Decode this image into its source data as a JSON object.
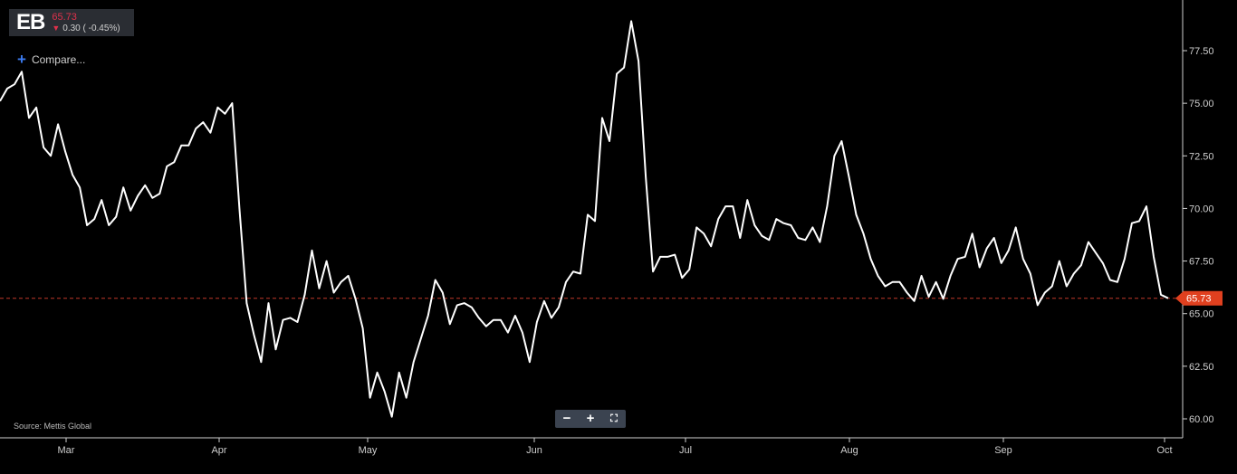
{
  "ticker": {
    "symbol": "EB",
    "price": "65.73",
    "change": "0.30 ( -0.45%)",
    "change_direction_icon": "down-arrow-icon",
    "colors": {
      "down": "#e0314b",
      "panel": "#2a2d33"
    }
  },
  "compare": {
    "label": "Compare...",
    "icon": "plus-icon"
  },
  "source": "Source: Mettis Global",
  "zoom_controls": {
    "zoom_out": "−",
    "zoom_in": "+",
    "fullscreen": "⛶"
  },
  "chart_data": {
    "type": "line",
    "title": "",
    "xlabel": "",
    "ylabel": "",
    "x_ticks": [
      "Mar",
      "Apr",
      "May",
      "Jun",
      "Jul",
      "Aug",
      "Sep",
      "Oct"
    ],
    "y_ticks": [
      "60.00",
      "62.50",
      "65.00",
      "67.50",
      "70.00",
      "72.50",
      "75.00",
      "77.50"
    ],
    "ylim": [
      59.5,
      79.8
    ],
    "line_color": "#ffffff",
    "last_value": 65.73,
    "last_value_label": "65.73",
    "last_value_color": "#e0401f",
    "grid": false,
    "values": [
      75.1,
      75.7,
      75.9,
      76.5,
      74.3,
      74.8,
      72.9,
      72.5,
      74.0,
      72.7,
      71.6,
      71.0,
      69.2,
      69.5,
      70.4,
      69.2,
      69.6,
      71.0,
      69.9,
      70.6,
      71.1,
      70.5,
      70.7,
      72.0,
      72.2,
      73.0,
      73.0,
      73.8,
      74.1,
      73.6,
      74.8,
      74.5,
      75.0,
      70.0,
      65.5,
      64.0,
      62.7,
      65.5,
      63.3,
      64.7,
      64.8,
      64.6,
      65.9,
      68.0,
      66.2,
      67.5,
      66.0,
      66.5,
      66.8,
      65.7,
      64.3,
      61.0,
      62.2,
      61.3,
      60.1,
      62.2,
      61.0,
      62.7,
      63.8,
      64.9,
      66.6,
      66.0,
      64.5,
      65.4,
      65.5,
      65.3,
      64.8,
      64.4,
      64.7,
      64.7,
      64.1,
      64.9,
      64.1,
      62.7,
      64.6,
      65.6,
      64.8,
      65.3,
      66.5,
      67.0,
      66.9,
      69.7,
      69.4,
      74.3,
      73.2,
      76.4,
      76.7,
      78.9,
      77.0,
      71.5,
      67.0,
      67.7,
      67.7,
      67.8,
      66.7,
      67.1,
      69.1,
      68.8,
      68.2,
      69.5,
      70.1,
      70.1,
      68.6,
      70.4,
      69.2,
      68.7,
      68.5,
      69.5,
      69.3,
      69.2,
      68.6,
      68.5,
      69.1,
      68.4,
      70.1,
      72.5,
      73.2,
      71.5,
      69.7,
      68.8,
      67.6,
      66.8,
      66.3,
      66.5,
      66.5,
      66.0,
      65.6,
      66.8,
      65.8,
      66.5,
      65.7,
      66.8,
      67.6,
      67.7,
      68.8,
      67.2,
      68.1,
      68.6,
      67.4,
      68.0,
      69.1,
      67.6,
      66.9,
      65.4,
      66.0,
      66.3,
      67.5,
      66.3,
      66.9,
      67.3,
      68.4,
      67.9,
      67.4,
      66.6,
      66.5,
      67.6,
      69.3,
      69.4,
      70.1,
      67.7,
      65.9,
      65.73
    ]
  }
}
